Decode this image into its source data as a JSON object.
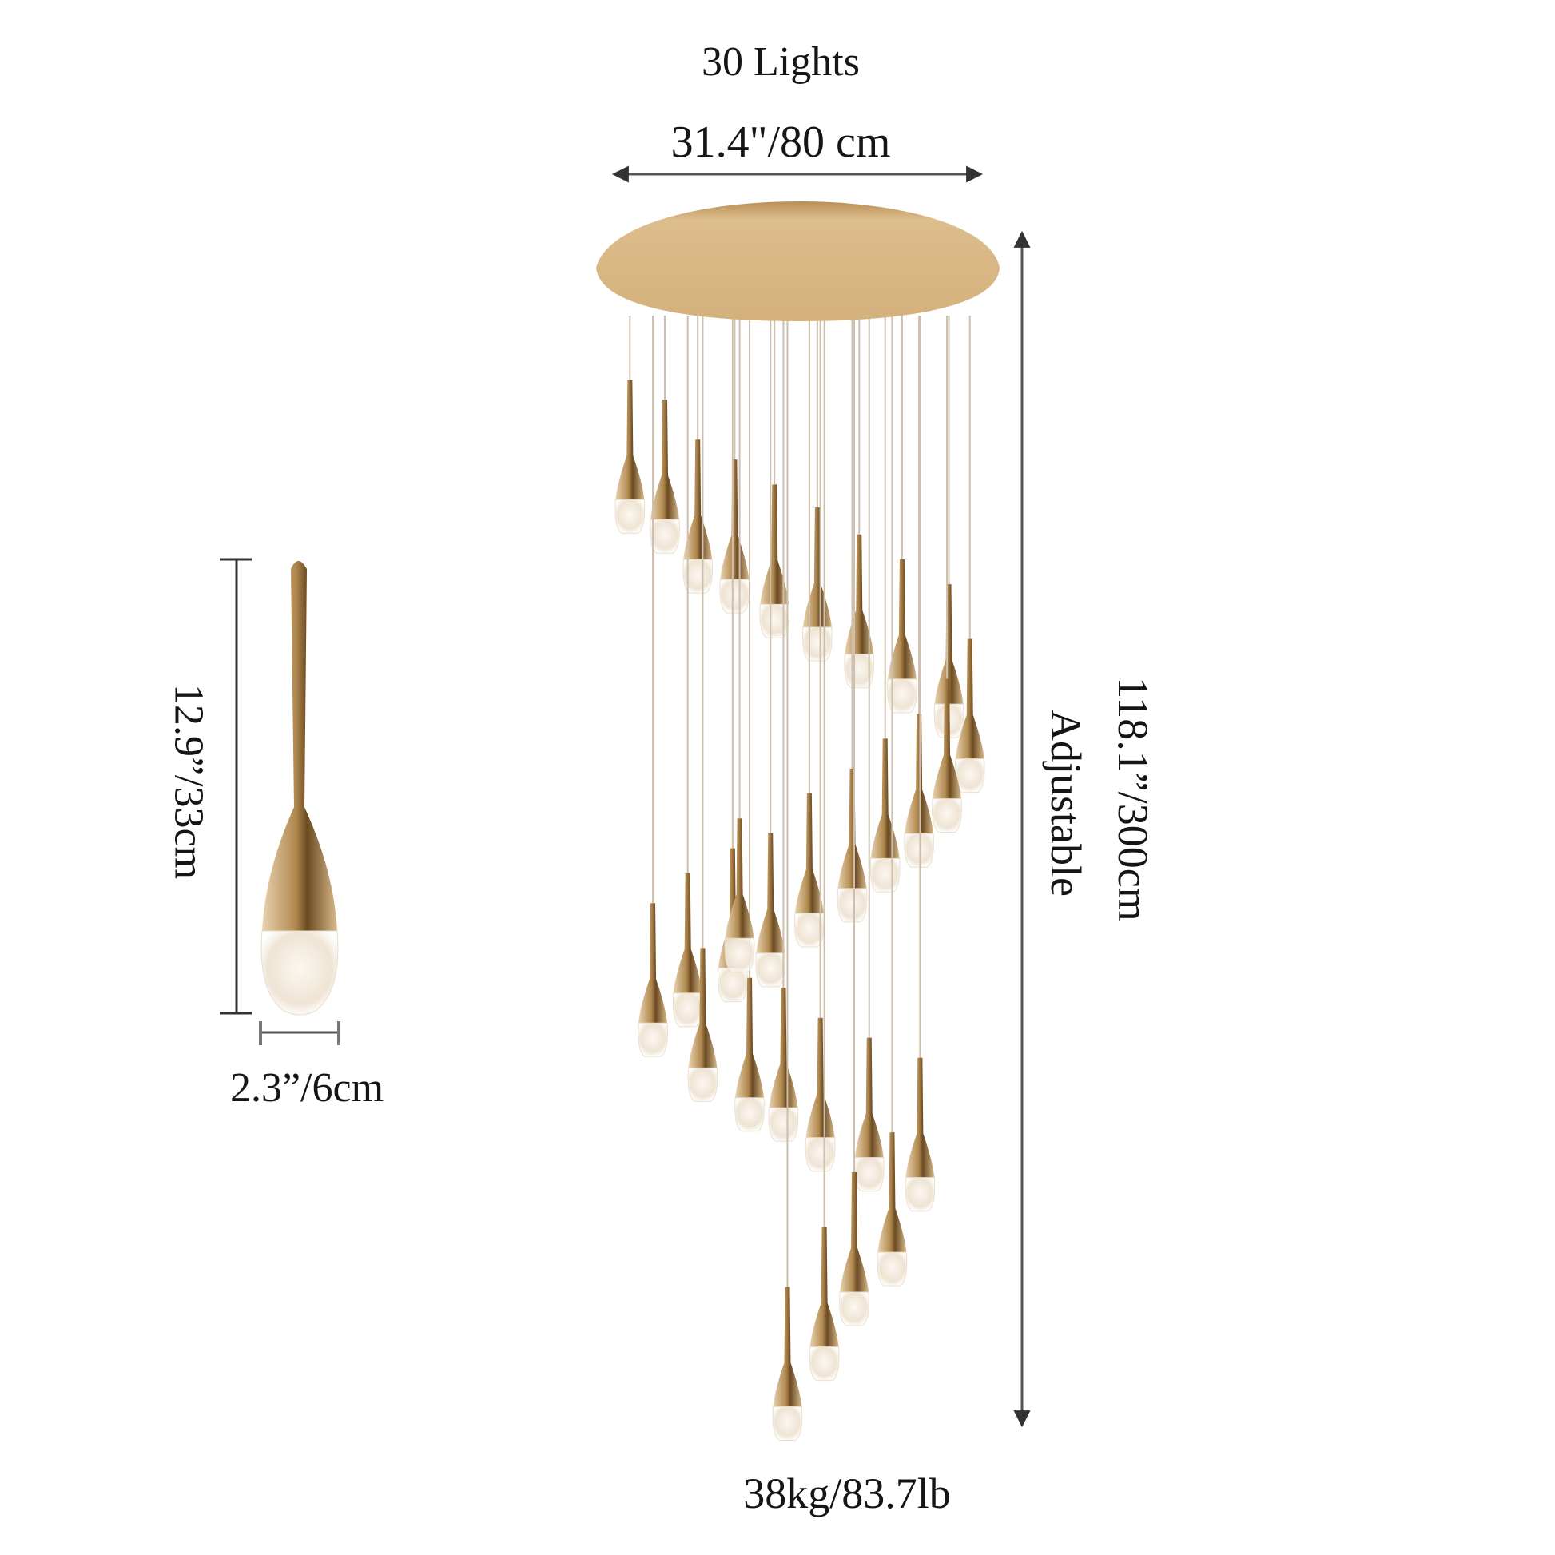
{
  "labels": {
    "light_count": "30 Lights",
    "canopy_width": "31.4\"/80 cm",
    "overall_height": "118.1”/300cm",
    "adjustable": "Adjustable",
    "pendant_height": "12.9”/33cm",
    "pendant_width": "2.3”/6cm",
    "weight": "38kg/83.7lb"
  },
  "colors": {
    "gold": "#c9a26a",
    "text": "#151515",
    "dimension_line": "#444444"
  }
}
